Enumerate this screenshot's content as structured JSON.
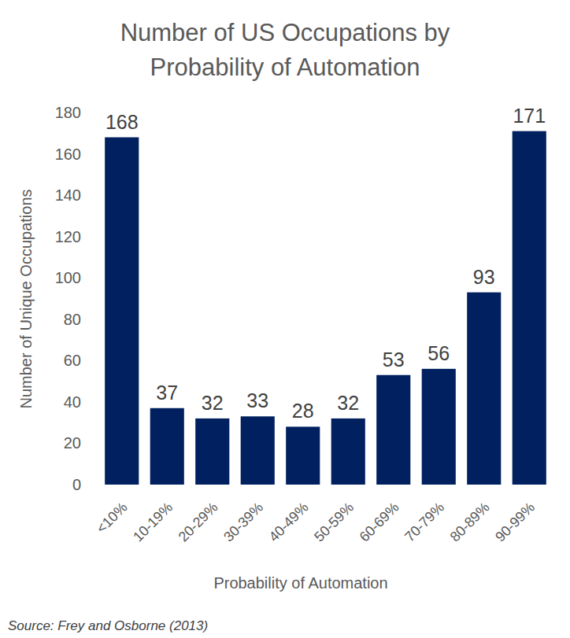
{
  "chart_data": {
    "type": "bar",
    "title": "Number of US Occupations by Probability of Automation",
    "x_label": "Probability of Automation",
    "y_label": "Number of Unique Occupations",
    "source": "Source: Frey and Osborne (2013)",
    "categories": [
      "<10%",
      "10-19%",
      "20-29%",
      "30-39%",
      "40-49%",
      "50-59%",
      "60-69%",
      "70-79%",
      "80-89%",
      "90-99%"
    ],
    "values": [
      168,
      37,
      32,
      33,
      28,
      32,
      53,
      56,
      93,
      171
    ],
    "color": "#002060",
    "ylim": [
      0,
      180
    ],
    "yticks": [
      0,
      20,
      40,
      60,
      80,
      100,
      120,
      140,
      160,
      180
    ],
    "grid": false,
    "data_labels": true
  }
}
